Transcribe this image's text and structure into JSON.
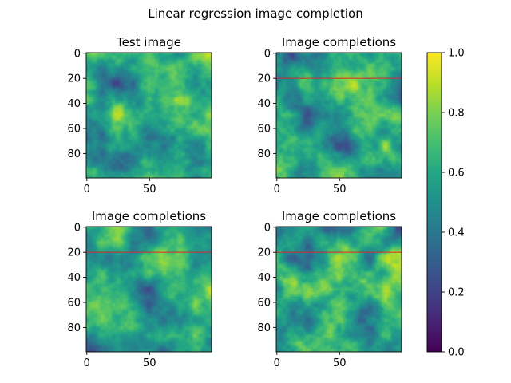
{
  "chart_data": {
    "type": "heatmap",
    "suptitle": "Linear regression image completion",
    "colormap": "viridis",
    "colorbar": {
      "vmin": 0.0,
      "vmax": 1.0,
      "ticks": [
        0.0,
        0.2,
        0.4,
        0.6,
        0.8,
        1.0
      ],
      "tick_labels": [
        "0.0",
        "0.2",
        "0.4",
        "0.6",
        "0.8",
        "1.0"
      ]
    },
    "image_size": [
      100,
      100
    ],
    "panels": [
      {
        "title": "Test image",
        "x_ticks": [
          0,
          50
        ],
        "x_tick_labels": [
          "0",
          "50"
        ],
        "y_ticks": [
          0,
          20,
          40,
          60,
          80
        ],
        "y_tick_labels": [
          "0",
          "20",
          "40",
          "60",
          "80"
        ],
        "xlim": [
          0,
          99
        ],
        "ylim": [
          99,
          0
        ],
        "completion_line_row": null,
        "seed": 11
      },
      {
        "title": "Image completions",
        "x_ticks": [
          0,
          50
        ],
        "x_tick_labels": [
          "0",
          "50"
        ],
        "y_ticks": [
          0,
          20,
          40,
          60,
          80
        ],
        "y_tick_labels": [
          "0",
          "20",
          "40",
          "60",
          "80"
        ],
        "xlim": [
          0,
          99
        ],
        "ylim": [
          99,
          0
        ],
        "completion_line_row": 20,
        "seed": 23
      },
      {
        "title": "Image completions",
        "x_ticks": [
          0,
          50
        ],
        "x_tick_labels": [
          "0",
          "50"
        ],
        "y_ticks": [
          0,
          20,
          40,
          60,
          80
        ],
        "y_tick_labels": [
          "0",
          "20",
          "40",
          "60",
          "80"
        ],
        "xlim": [
          0,
          99
        ],
        "ylim": [
          99,
          0
        ],
        "completion_line_row": 20,
        "seed": 37
      },
      {
        "title": "Image completions",
        "x_ticks": [
          0,
          50
        ],
        "x_tick_labels": [
          "0",
          "50"
        ],
        "y_ticks": [
          0,
          20,
          40,
          60,
          80
        ],
        "y_tick_labels": [
          "0",
          "20",
          "40",
          "60",
          "80"
        ],
        "xlim": [
          0,
          99
        ],
        "ylim": [
          99,
          0
        ],
        "completion_line_row": 20,
        "seed": 53
      }
    ],
    "completion_line_color": "#d62728"
  }
}
